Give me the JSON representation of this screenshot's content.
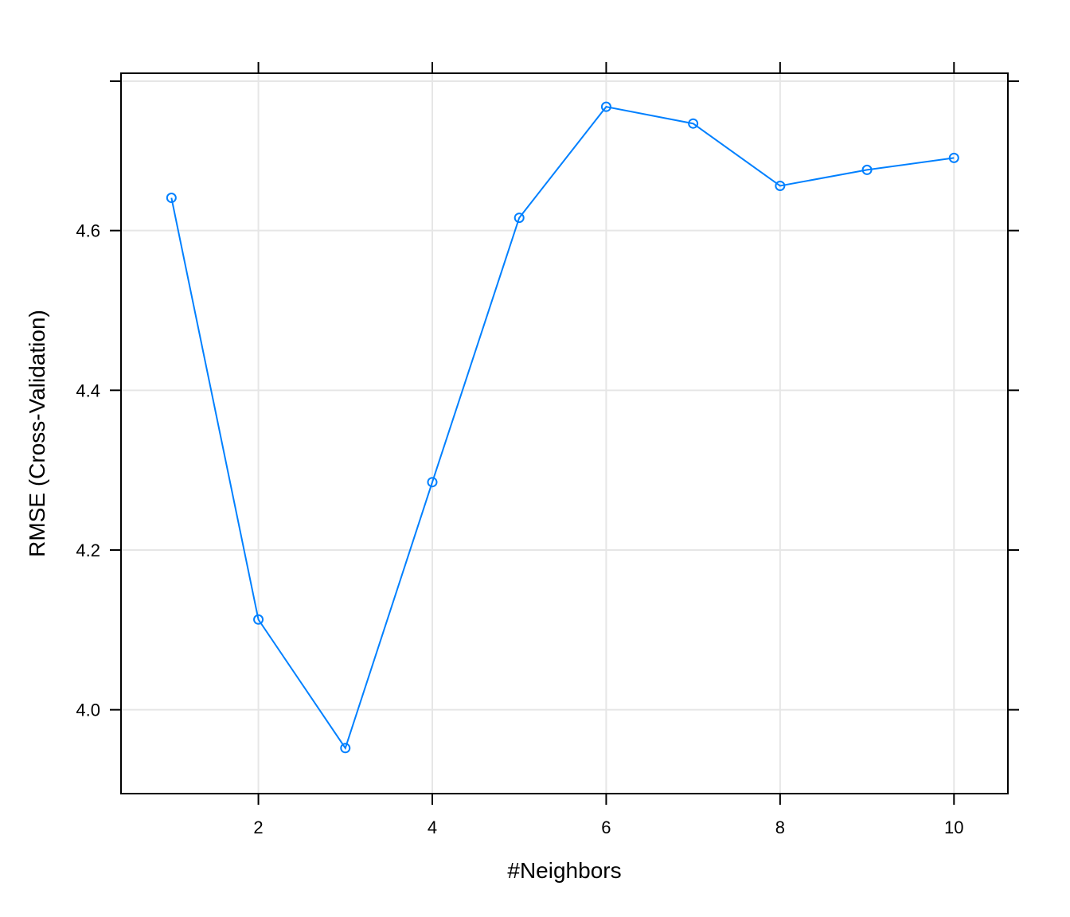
{
  "chart_data": {
    "type": "line",
    "xlabel": "#Neighbors",
    "ylabel": "RMSE (Cross-Validation)",
    "x": [
      1,
      2,
      3,
      4,
      5,
      6,
      7,
      8,
      9,
      10
    ],
    "series": [
      {
        "values": [
          4.641,
          4.113,
          3.952,
          4.285,
          4.616,
          4.755,
          4.734,
          4.656,
          4.676,
          4.691
        ]
      }
    ],
    "xlim": [
      0.42,
      10.62
    ],
    "ylim": [
      3.895,
      4.797
    ],
    "x_ticks": [
      2,
      4,
      6,
      8,
      10
    ],
    "x_tick_labels": [
      "2",
      "4",
      "6",
      "8",
      "10"
    ],
    "y_ticks": [
      4.0,
      4.2,
      4.4,
      4.6
    ],
    "y_tick_labels": [
      "4.0",
      "4.2",
      "4.4",
      "4.6"
    ],
    "grid": true,
    "colors": {
      "series": "#0080ff",
      "grid": "#e6e6e6",
      "frame": "#000000"
    }
  }
}
